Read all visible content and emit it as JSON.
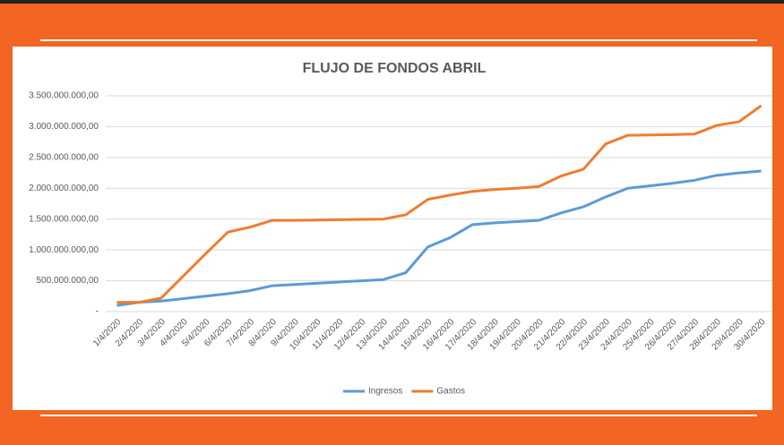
{
  "chart_data": {
    "type": "line",
    "title": "FLUJO DE FONDOS ABRIL",
    "categories": [
      "1/4/2020",
      "2/4/2020",
      "3/4/2020",
      "4/4/2020",
      "5/4/2020",
      "6/4/2020",
      "7/4/2020",
      "8/4/2020",
      "9/4/2020",
      "10/4/2020",
      "11/4/2020",
      "12/4/2020",
      "13/4/2020",
      "14/4/2020",
      "15/4/2020",
      "16/4/2020",
      "17/4/2020",
      "18/4/2020",
      "19/4/2020",
      "20/4/2020",
      "21/4/2020",
      "22/4/2020",
      "23/4/2020",
      "24/4/2020",
      "25/4/2020",
      "26/4/2020",
      "27/4/2020",
      "28/4/2020",
      "29/4/2020",
      "30/4/2020"
    ],
    "series": [
      {
        "name": "Ingresos",
        "color": "#5b9bd5",
        "values": [
          100000000,
          150000000,
          170000000,
          210000000,
          250000000,
          290000000,
          340000000,
          420000000,
          440000000,
          460000000,
          480000000,
          500000000,
          520000000,
          630000000,
          1050000000,
          1200000000,
          1410000000,
          1440000000,
          1460000000,
          1480000000,
          1600000000,
          1700000000,
          1860000000,
          2000000000,
          2040000000,
          2080000000,
          2130000000,
          2210000000,
          2250000000,
          2280000000
        ]
      },
      {
        "name": "Gastos",
        "color": "#ed7d31",
        "values": [
          150000000,
          150000000,
          220000000,
          580000000,
          940000000,
          1290000000,
          1370000000,
          1480000000,
          1480000000,
          1485000000,
          1490000000,
          1495000000,
          1500000000,
          1570000000,
          1820000000,
          1890000000,
          1950000000,
          1980000000,
          2000000000,
          2030000000,
          2200000000,
          2310000000,
          2720000000,
          2860000000,
          2865000000,
          2870000000,
          2880000000,
          3020000000,
          3080000000,
          3340000000
        ]
      }
    ],
    "ylim": [
      0,
      3500000000
    ],
    "yticks": [
      {
        "value": 0,
        "label": "-"
      },
      {
        "value": 500000000,
        "label": "500.000.000,00"
      },
      {
        "value": 1000000000,
        "label": "1.000.000.000,00"
      },
      {
        "value": 1500000000,
        "label": "1.500.000.000,00"
      },
      {
        "value": 2000000000,
        "label": "2.000.000.000,00"
      },
      {
        "value": 2500000000,
        "label": "2.500.000.000,00"
      },
      {
        "value": 3000000000,
        "label": "3.000.000.000,00"
      },
      {
        "value": 3500000000,
        "label": "3.500.000.000,00"
      }
    ],
    "grid": true,
    "legend": "bottom"
  }
}
